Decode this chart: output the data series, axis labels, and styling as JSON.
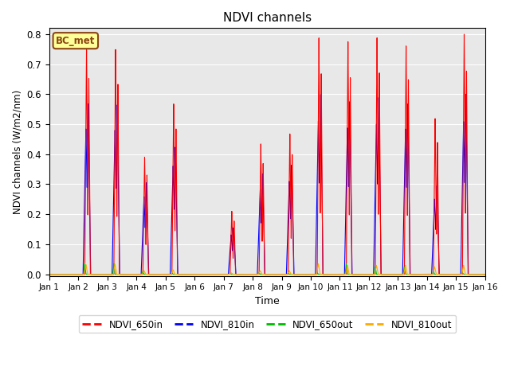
{
  "title": "NDVI channels",
  "xlabel": "Time",
  "ylabel": "NDVI channels (W/m2/nm)",
  "xlim": [
    0,
    15
  ],
  "ylim": [
    -0.005,
    0.82
  ],
  "yticks": [
    0.0,
    0.1,
    0.2,
    0.3,
    0.4,
    0.5,
    0.6,
    0.7,
    0.8
  ],
  "xtick_labels": [
    "Jan 1",
    "Jan 2",
    "Jan 3",
    "Jan 4",
    "Jan 5",
    "Jan 6",
    "Jan 7",
    "Jan 8",
    "Jan 9",
    "Jan 10",
    "Jan 11",
    "Jan 12",
    "Jan 13",
    "Jan 14",
    "Jan 15",
    "Jan 16"
  ],
  "xtick_positions": [
    0,
    1,
    2,
    3,
    4,
    5,
    6,
    7,
    8,
    9,
    10,
    11,
    12,
    13,
    14,
    15
  ],
  "background_color": "#e8e8e8",
  "legend_label": "BC_met",
  "legend_bg": "#ffff99",
  "legend_edge": "#8B4513",
  "series": {
    "NDVI_650in": {
      "color": "#ff0000",
      "label": "NDVI_650in"
    },
    "NDVI_810in": {
      "color": "#0000ff",
      "label": "NDVI_810in"
    },
    "NDVI_650out": {
      "color": "#00bb00",
      "label": "NDVI_650out"
    },
    "NDVI_810out": {
      "color": "#ffaa00",
      "label": "NDVI_810out"
    }
  },
  "spikes": [
    {
      "day": 1,
      "r": 0.77,
      "b": 0.57,
      "g": 0.035,
      "o": 0.032
    },
    {
      "day": 2,
      "r": 0.75,
      "b": 0.565,
      "g": 0.035,
      "o": 0.034
    },
    {
      "day": 3,
      "r": 0.39,
      "b": 0.305,
      "g": 0.01,
      "o": 0.012
    },
    {
      "day": 4,
      "r": 0.57,
      "b": 0.425,
      "g": 0.005,
      "o": 0.015
    },
    {
      "day": 5,
      "r": 0.0,
      "b": 0.0,
      "g": 0.0,
      "o": 0.0
    },
    {
      "day": 6,
      "r": 0.21,
      "b": 0.155,
      "g": 0.003,
      "o": 0.005
    },
    {
      "day": 7,
      "r": 0.435,
      "b": 0.335,
      "g": 0.005,
      "o": 0.012
    },
    {
      "day": 8,
      "r": 0.47,
      "b": 0.365,
      "g": 0.005,
      "o": 0.012
    },
    {
      "day": 9,
      "r": 0.79,
      "b": 0.6,
      "g": 0.005,
      "o": 0.035
    },
    {
      "day": 10,
      "r": 0.775,
      "b": 0.575,
      "g": 0.035,
      "o": 0.03
    },
    {
      "day": 11,
      "r": 0.79,
      "b": 0.59,
      "g": 0.025,
      "o": 0.03
    },
    {
      "day": 12,
      "r": 0.765,
      "b": 0.57,
      "g": 0.025,
      "o": 0.03
    },
    {
      "day": 13,
      "r": 0.52,
      "b": 0.295,
      "g": 0.01,
      "o": 0.025
    },
    {
      "day": 14,
      "r": 0.8,
      "b": 0.6,
      "g": 0.005,
      "o": 0.03
    }
  ]
}
